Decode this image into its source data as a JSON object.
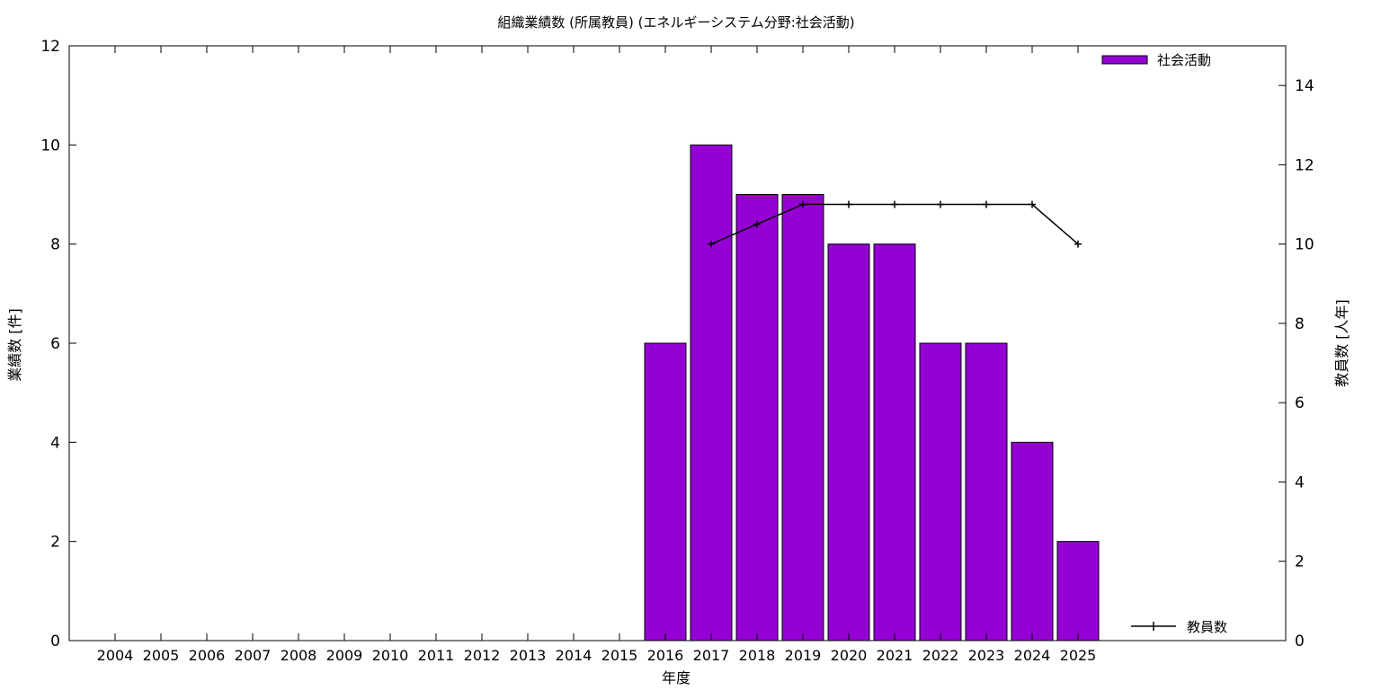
{
  "chart_data": {
    "type": "bar",
    "title": "組織業績数 (所属教員) (エネルギーシステム分野:社会活動)",
    "xlabel": "年度",
    "ylabel": "業績数 [件]",
    "y2label": "教員数 [人年]",
    "categories": [
      "2004",
      "2005",
      "2006",
      "2007",
      "2008",
      "2009",
      "2010",
      "2011",
      "2012",
      "2013",
      "2014",
      "2015",
      "2016",
      "2017",
      "2018",
      "2019",
      "2020",
      "2021",
      "2022",
      "2023",
      "2024",
      "2025"
    ],
    "ylim": [
      0,
      12
    ],
    "y2lim": [
      0,
      15
    ],
    "yticks": [
      0,
      2,
      4,
      6,
      8,
      10,
      12
    ],
    "y2ticks": [
      0,
      2,
      4,
      6,
      8,
      10,
      12,
      14
    ],
    "grid": false,
    "legend_position": "top-right / bottom-right",
    "series": [
      {
        "name": "社会活動",
        "type": "bar",
        "axis": "left",
        "color": "#9400d3",
        "values": [
          null,
          null,
          null,
          null,
          null,
          null,
          null,
          null,
          null,
          null,
          null,
          null,
          6,
          10,
          9,
          9,
          8,
          8,
          6,
          6,
          4,
          2
        ]
      },
      {
        "name": "教員数",
        "type": "line",
        "axis": "right",
        "color": "#000000",
        "values": [
          null,
          null,
          null,
          null,
          null,
          null,
          null,
          null,
          null,
          null,
          null,
          null,
          null,
          10,
          10.5,
          11,
          11,
          11,
          11,
          11,
          11,
          10
        ]
      }
    ]
  }
}
